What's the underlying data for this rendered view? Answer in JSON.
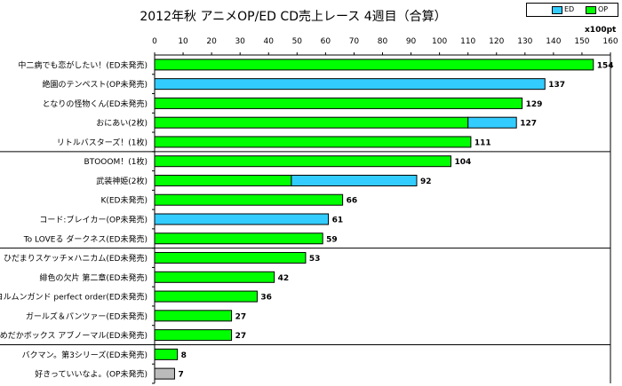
{
  "chart_data": {
    "type": "bar",
    "title": "2012年秋 アニメOP/ED CD売上レース 4週目（合算）",
    "unit_label": "x100pt",
    "xlim": [
      0,
      160
    ],
    "xticks": [
      0,
      10,
      20,
      30,
      40,
      50,
      60,
      70,
      80,
      90,
      100,
      110,
      120,
      130,
      140,
      150,
      160
    ],
    "grid": false,
    "legend_position": "top-right",
    "legend": [
      {
        "name": "ED",
        "color": "#33CCFF"
      },
      {
        "name": "OP",
        "color": "#00FF00"
      }
    ],
    "categories": [
      "中二病でも恋がしたい！(ED未発売)",
      "絶園のテンペスト(OP未発売)",
      "となりの怪物くん(ED未発売)",
      "おにあい(2枚)",
      "リトルバスターズ！(1枚)",
      "BTOOOM！(1枚)",
      "武装神姫(2枚)",
      "K(ED未発売)",
      "コード:ブレイカー(OP未発売)",
      "To LOVEる ダークネス(ED未発売)",
      "ひだまりスケッチ×ハニカム(ED未発売)",
      "緋色の欠片 第二章(ED未発売)",
      "ヨルムンガンド perfect order(ED未発売)",
      "ガールズ＆パンツァー(ED未発売)",
      "めだかボックス アブノーマル(ED未発売)",
      "バクマン。第3シリーズ(ED未発売)",
      "好きっていいなよ。(OP未発売)"
    ],
    "series": [
      {
        "name": "OP",
        "color": "#00FF00",
        "values": [
          154,
          0,
          129,
          110,
          111,
          104,
          48,
          66,
          0,
          59,
          53,
          42,
          36,
          27,
          27,
          8,
          0
        ]
      },
      {
        "name": "ED",
        "color": "#33CCFF",
        "values": [
          0,
          137,
          0,
          17,
          0,
          0,
          44,
          0,
          61,
          0,
          0,
          0,
          0,
          0,
          0,
          0,
          0
        ]
      },
      {
        "color": "#BBBBBB",
        "values": [
          0,
          0,
          0,
          0,
          0,
          0,
          0,
          0,
          0,
          0,
          0,
          0,
          0,
          0,
          0,
          0,
          7
        ]
      }
    ],
    "totals": [
      154,
      137,
      129,
      127,
      111,
      104,
      92,
      66,
      61,
      59,
      53,
      42,
      36,
      27,
      27,
      8,
      7
    ],
    "group_separators_after": [
      4,
      9,
      14
    ]
  }
}
